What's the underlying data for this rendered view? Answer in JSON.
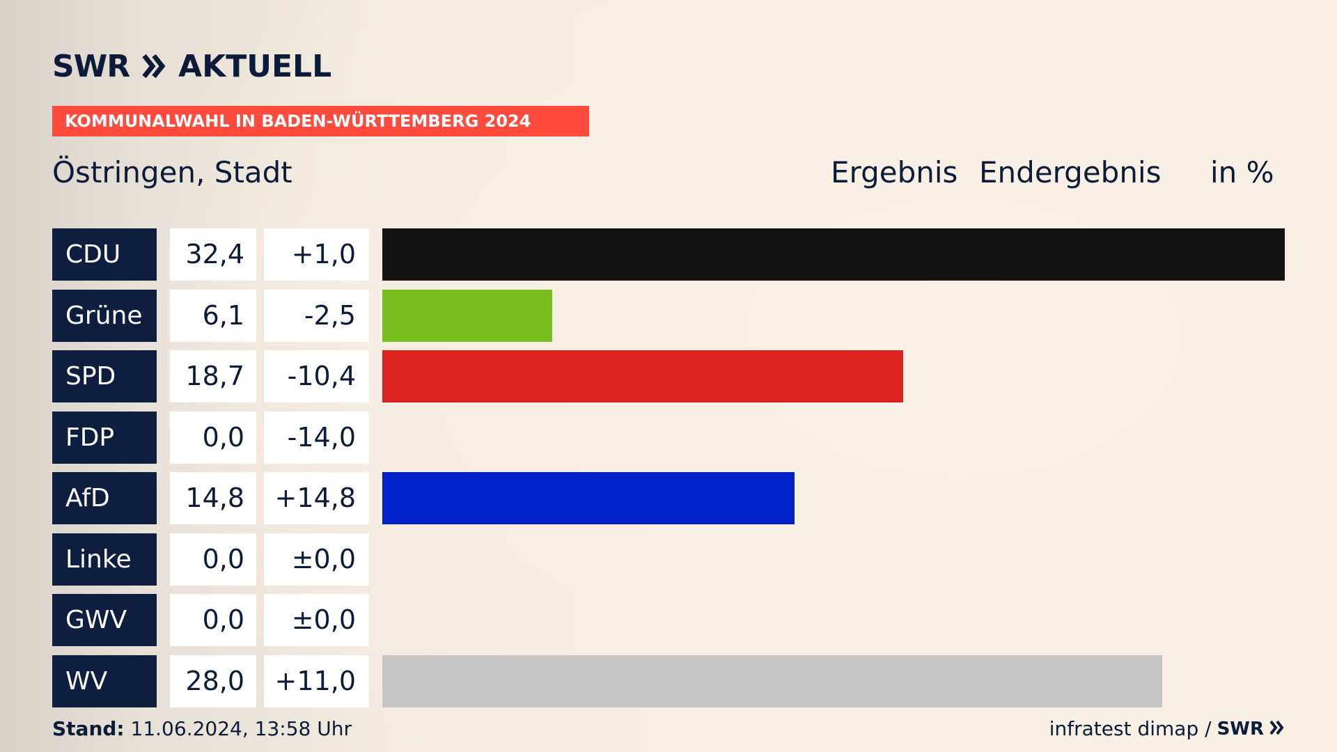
{
  "brand": {
    "logo_main": "SWR",
    "logo_sub": "AKTUELL"
  },
  "banner": "KOMMUNALWAHL IN BADEN-WÜRTTEMBERG 2024",
  "header": {
    "location": "Östringen, Stadt",
    "result_label": "Ergebnis",
    "result_status": "Endergebnis",
    "unit": "in %"
  },
  "footer": {
    "stand_label": "Stand:",
    "stand_value": "11.06.2024, 13:58 Uhr",
    "source": "infratest dimap /",
    "source_brand": "SWR"
  },
  "colors": {
    "banner": "#ff4b3e",
    "party_box": "#0d1e3f",
    "text": "#0c1b3a"
  },
  "chart_data": {
    "type": "bar",
    "orientation": "horizontal",
    "unit": "in %",
    "xlim": [
      0,
      32.4
    ],
    "categories": [
      "CDU",
      "Grüne",
      "SPD",
      "FDP",
      "AfD",
      "Linke",
      "GWV",
      "WV"
    ],
    "values": [
      32.4,
      6.1,
      18.7,
      0.0,
      14.8,
      0.0,
      0.0,
      28.0
    ],
    "value_labels": [
      "32,4",
      "6,1",
      "18,7",
      "0,0",
      "14,8",
      "0,0",
      "0,0",
      "28,0"
    ],
    "diff_labels": [
      "+1,0",
      "-2,5",
      "-10,4",
      "-14,0",
      "+14,8",
      "±0,0",
      "±0,0",
      "+11,0"
    ],
    "bar_colors": [
      "#141414",
      "#78be1e",
      "#d9211e",
      "#ffe000",
      "#0020c8",
      "#be3075",
      "#9b9b9b",
      "#c6c6c6"
    ]
  }
}
